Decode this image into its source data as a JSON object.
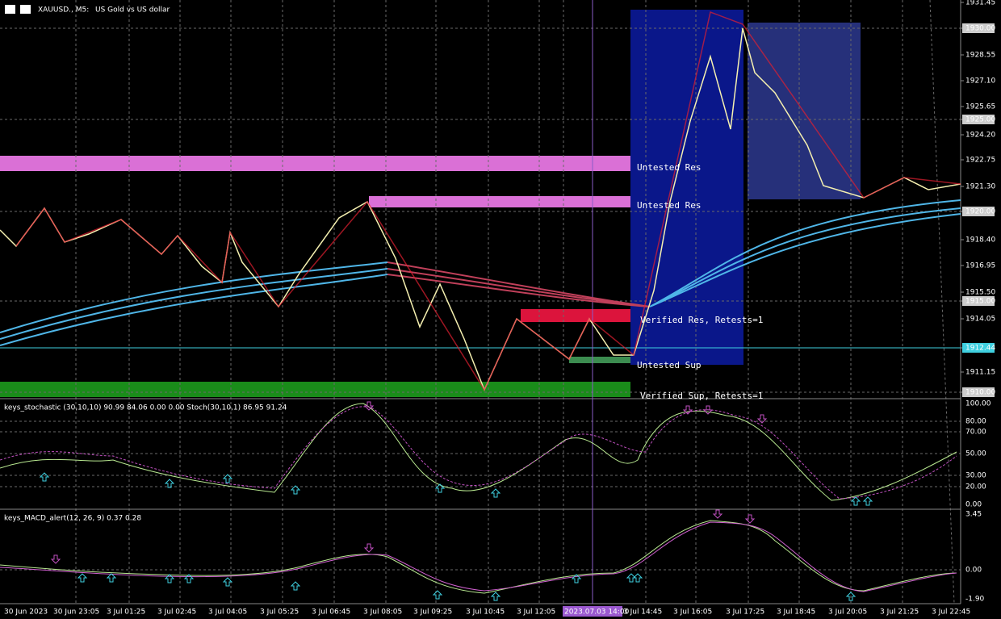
{
  "header": {
    "symbol": "XAUUSD., M5:",
    "description": "US Gold vs US dollar"
  },
  "price_axis": [
    "1931.45",
    "1930.00",
    "1928.55",
    "1927.10",
    "1925.65",
    "1925.00",
    "1924.20",
    "1922.75",
    "1921.30",
    "1920.00",
    "1918.40",
    "1916.95",
    "1915.50",
    "1915.00",
    "1914.05",
    "1912.44",
    "1911.15",
    "1910.00"
  ],
  "zones": [
    "Untested Res",
    "Untested Res",
    "Verified Res, Retests=1",
    "Untested Sup",
    "Verified Sup, Retests=1"
  ],
  "stochastic": {
    "header": "keys_stochastic (30,10,10) 90.99 84.06 0.00 0.00 Stoch(30,10,1) 86.95 91.24",
    "axis": [
      "100.00",
      "80.00",
      "70.00",
      "50.00",
      "30.00",
      "20.00",
      "0.00"
    ]
  },
  "macd": {
    "header": "keys_MACD_alert(12, 26, 9) 0.37 0.28",
    "axis": [
      "3.45",
      "0.00",
      "-1.90"
    ]
  },
  "time_axis": [
    "30 Jun 2023",
    "30 Jun 23:05",
    "3 Jul 01:25",
    "3 Jul 02:45",
    "3 Jul 04:05",
    "3 Jul 05:25",
    "3 Jul 06:45",
    "3 Jul 08:05",
    "3 Jul 09:25",
    "3 Jul 10:45",
    "3 Jul 12:05",
    "2023.07.03 14:00",
    "3 Jul 14:45",
    "3 Jul 16:05",
    "3 Jul 17:25",
    "3 Jul 18:45",
    "3 Jul 20:05",
    "3 Jul 21:25",
    "3 Jul 22:45"
  ]
}
